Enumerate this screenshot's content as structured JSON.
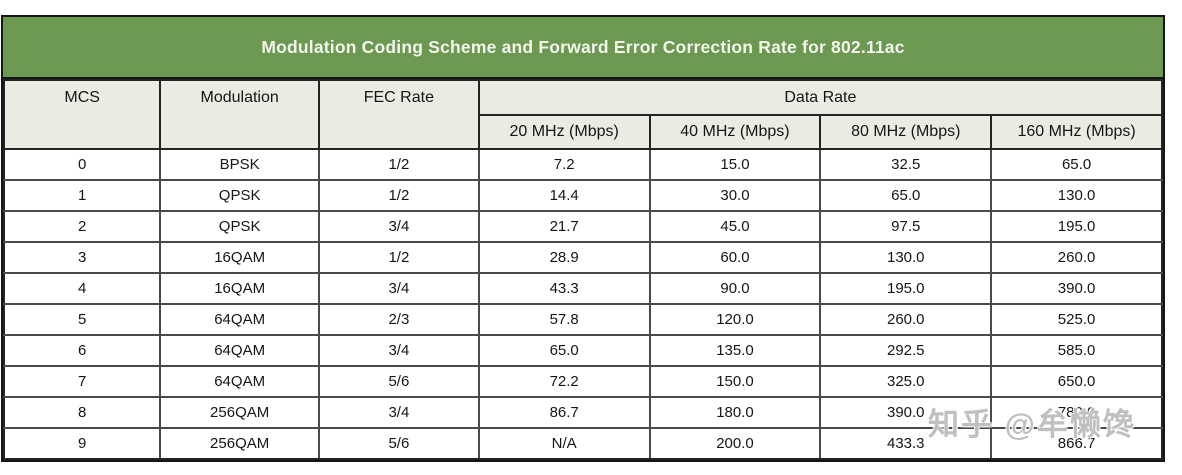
{
  "banner": {
    "title": "Modulation Coding Scheme and Forward Error Correction Rate for 802.11ac"
  },
  "table": {
    "header": {
      "mcs": "MCS",
      "modulation": "Modulation",
      "fec_rate": "FEC Rate",
      "data_rate": "Data Rate",
      "bandwidths": [
        "20 MHz (Mbps)",
        "40 MHz (Mbps)",
        "80 MHz (Mbps)",
        "160 MHz (Mbps)"
      ]
    },
    "rows": [
      {
        "mcs": "0",
        "modulation": "BPSK",
        "fec_rate": "1/2",
        "rates": [
          "7.2",
          "15.0",
          "32.5",
          "65.0"
        ]
      },
      {
        "mcs": "1",
        "modulation": "QPSK",
        "fec_rate": "1/2",
        "rates": [
          "14.4",
          "30.0",
          "65.0",
          "130.0"
        ]
      },
      {
        "mcs": "2",
        "modulation": "QPSK",
        "fec_rate": "3/4",
        "rates": [
          "21.7",
          "45.0",
          "97.5",
          "195.0"
        ]
      },
      {
        "mcs": "3",
        "modulation": "16QAM",
        "fec_rate": "1/2",
        "rates": [
          "28.9",
          "60.0",
          "130.0",
          "260.0"
        ]
      },
      {
        "mcs": "4",
        "modulation": "16QAM",
        "fec_rate": "3/4",
        "rates": [
          "43.3",
          "90.0",
          "195.0",
          "390.0"
        ]
      },
      {
        "mcs": "5",
        "modulation": "64QAM",
        "fec_rate": "2/3",
        "rates": [
          "57.8",
          "120.0",
          "260.0",
          "525.0"
        ]
      },
      {
        "mcs": "6",
        "modulation": "64QAM",
        "fec_rate": "3/4",
        "rates": [
          "65.0",
          "135.0",
          "292.5",
          "585.0"
        ]
      },
      {
        "mcs": "7",
        "modulation": "64QAM",
        "fec_rate": "5/6",
        "rates": [
          "72.2",
          "150.0",
          "325.0",
          "650.0"
        ]
      },
      {
        "mcs": "8",
        "modulation": "256QAM",
        "fec_rate": "3/4",
        "rates": [
          "86.7",
          "180.0",
          "390.0",
          "780.0"
        ]
      },
      {
        "mcs": "9",
        "modulation": "256QAM",
        "fec_rate": "5/6",
        "rates": [
          "N/A",
          "200.0",
          "433.3",
          "866.7"
        ]
      }
    ]
  },
  "watermark": {
    "text": "知乎 @牟懒馋"
  },
  "colors": {
    "banner_green": "#6c9852",
    "header_bg": "#e8ece2",
    "title_text": "#f2f6ec",
    "border_dark": "#242424",
    "grid_gray": "#4a4a4a"
  }
}
